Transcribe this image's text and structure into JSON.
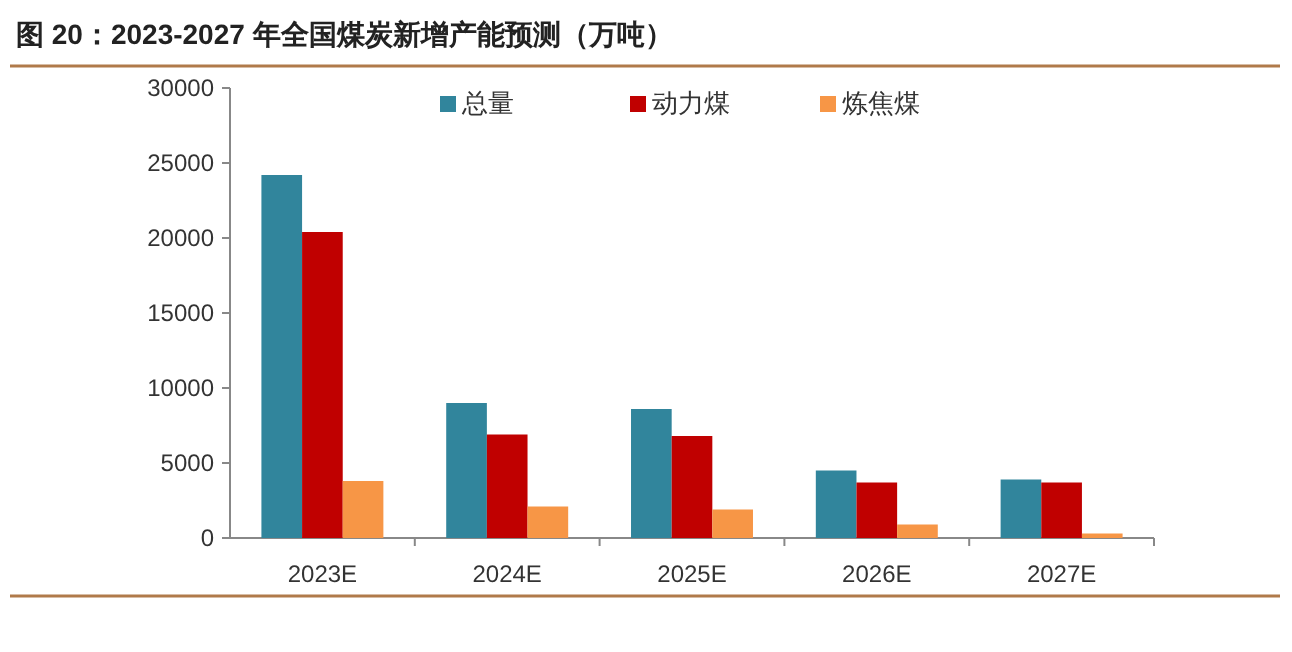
{
  "chart_data": {
    "type": "bar",
    "title": "图 20：2023-2027 年全国煤炭新增产能预测（万吨）",
    "categories": [
      "2023E",
      "2024E",
      "2025E",
      "2026E",
      "2027E"
    ],
    "series": [
      {
        "name": "总量",
        "color": "#31859c",
        "values": [
          24200,
          9000,
          8600,
          4500,
          3900
        ]
      },
      {
        "name": "动力煤",
        "color": "#c00000",
        "values": [
          20400,
          6900,
          6800,
          3700,
          3700
        ]
      },
      {
        "name": "炼焦煤",
        "color": "#f79646",
        "values": [
          3800,
          2100,
          1900,
          900,
          300
        ]
      }
    ],
    "ylim": [
      0,
      30000
    ],
    "yticks": [
      0,
      5000,
      10000,
      15000,
      20000,
      25000,
      30000
    ],
    "grid": false,
    "legend": "top"
  }
}
